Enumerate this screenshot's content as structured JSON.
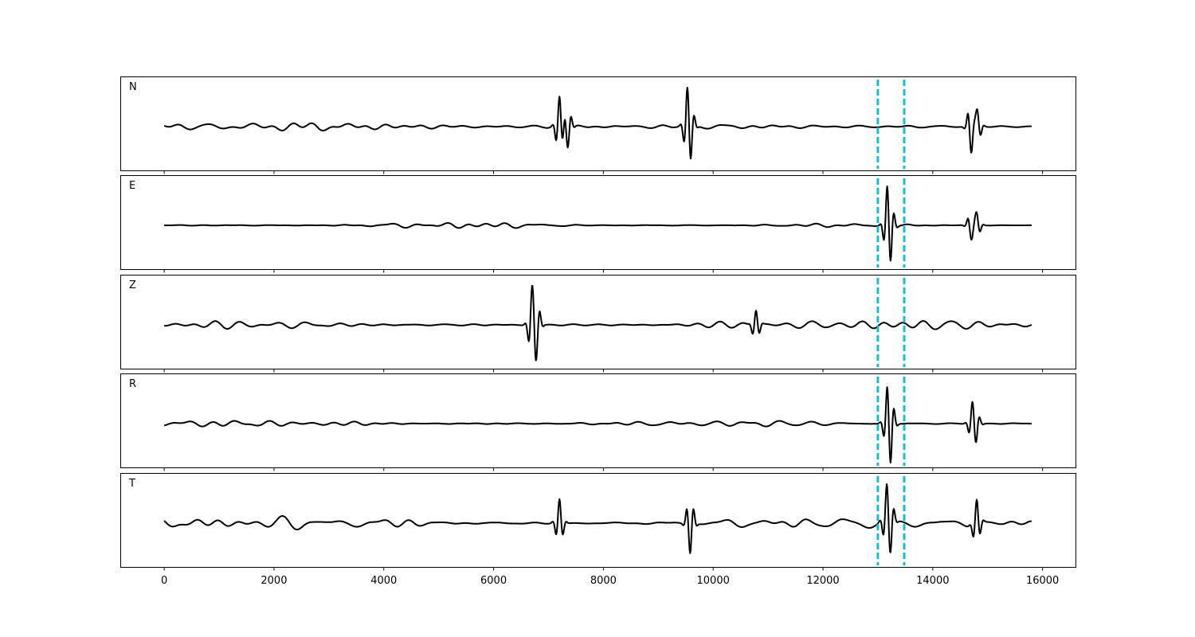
{
  "chart_data": {
    "type": "line",
    "title": "",
    "xlabel": "",
    "ylabel": "",
    "xlim": [
      -800,
      16600
    ],
    "x_ticks": [
      0,
      2000,
      4000,
      6000,
      8000,
      10000,
      12000,
      14000,
      16000
    ],
    "x_tick_labels": [
      "0",
      "2000",
      "4000",
      "6000",
      "8000",
      "10000",
      "12000",
      "14000",
      "16000"
    ],
    "n_samples": 15800,
    "trace_color": "#000000",
    "marker_color": "#17becf",
    "markers": [
      13000,
      13480
    ],
    "panels": [
      {
        "label": "N",
        "amplitude_scale": 1.0,
        "events": [
          {
            "x": 7200,
            "amp": 1.0
          },
          {
            "x": 7350,
            "amp": -0.7
          },
          {
            "x": 9530,
            "amp": 1.0
          },
          {
            "x": 9590,
            "amp": -0.6
          },
          {
            "x": 14700,
            "amp": -0.9
          },
          {
            "x": 14810,
            "amp": 0.6
          }
        ],
        "noise_level": 0.25
      },
      {
        "label": "E",
        "amplitude_scale": 1.0,
        "events": [
          {
            "x": 13170,
            "amp": 1.0
          },
          {
            "x": 13230,
            "amp": -0.8
          },
          {
            "x": 14700,
            "amp": -0.5
          },
          {
            "x": 14800,
            "amp": 0.45
          }
        ],
        "noise_level": 0.1
      },
      {
        "label": "Z",
        "amplitude_scale": 1.0,
        "events": [
          {
            "x": 6700,
            "amp": 1.0
          },
          {
            "x": 6780,
            "amp": -0.8
          },
          {
            "x": 10780,
            "amp": 0.5
          }
        ],
        "noise_level": 0.2
      },
      {
        "label": "R",
        "amplitude_scale": 1.0,
        "events": [
          {
            "x": 13170,
            "amp": 0.8
          },
          {
            "x": 13230,
            "amp": -1.0
          },
          {
            "x": 14720,
            "amp": 0.6
          },
          {
            "x": 14790,
            "amp": -0.4
          }
        ],
        "noise_level": 0.15
      },
      {
        "label": "T",
        "amplitude_scale": 1.0,
        "events": [
          {
            "x": 7200,
            "amp": 0.8
          },
          {
            "x": 9580,
            "amp": -1.0
          },
          {
            "x": 13160,
            "amp": 0.9
          },
          {
            "x": 13230,
            "amp": -0.7
          },
          {
            "x": 14800,
            "amp": 0.8
          }
        ],
        "noise_level": 0.3
      }
    ]
  }
}
